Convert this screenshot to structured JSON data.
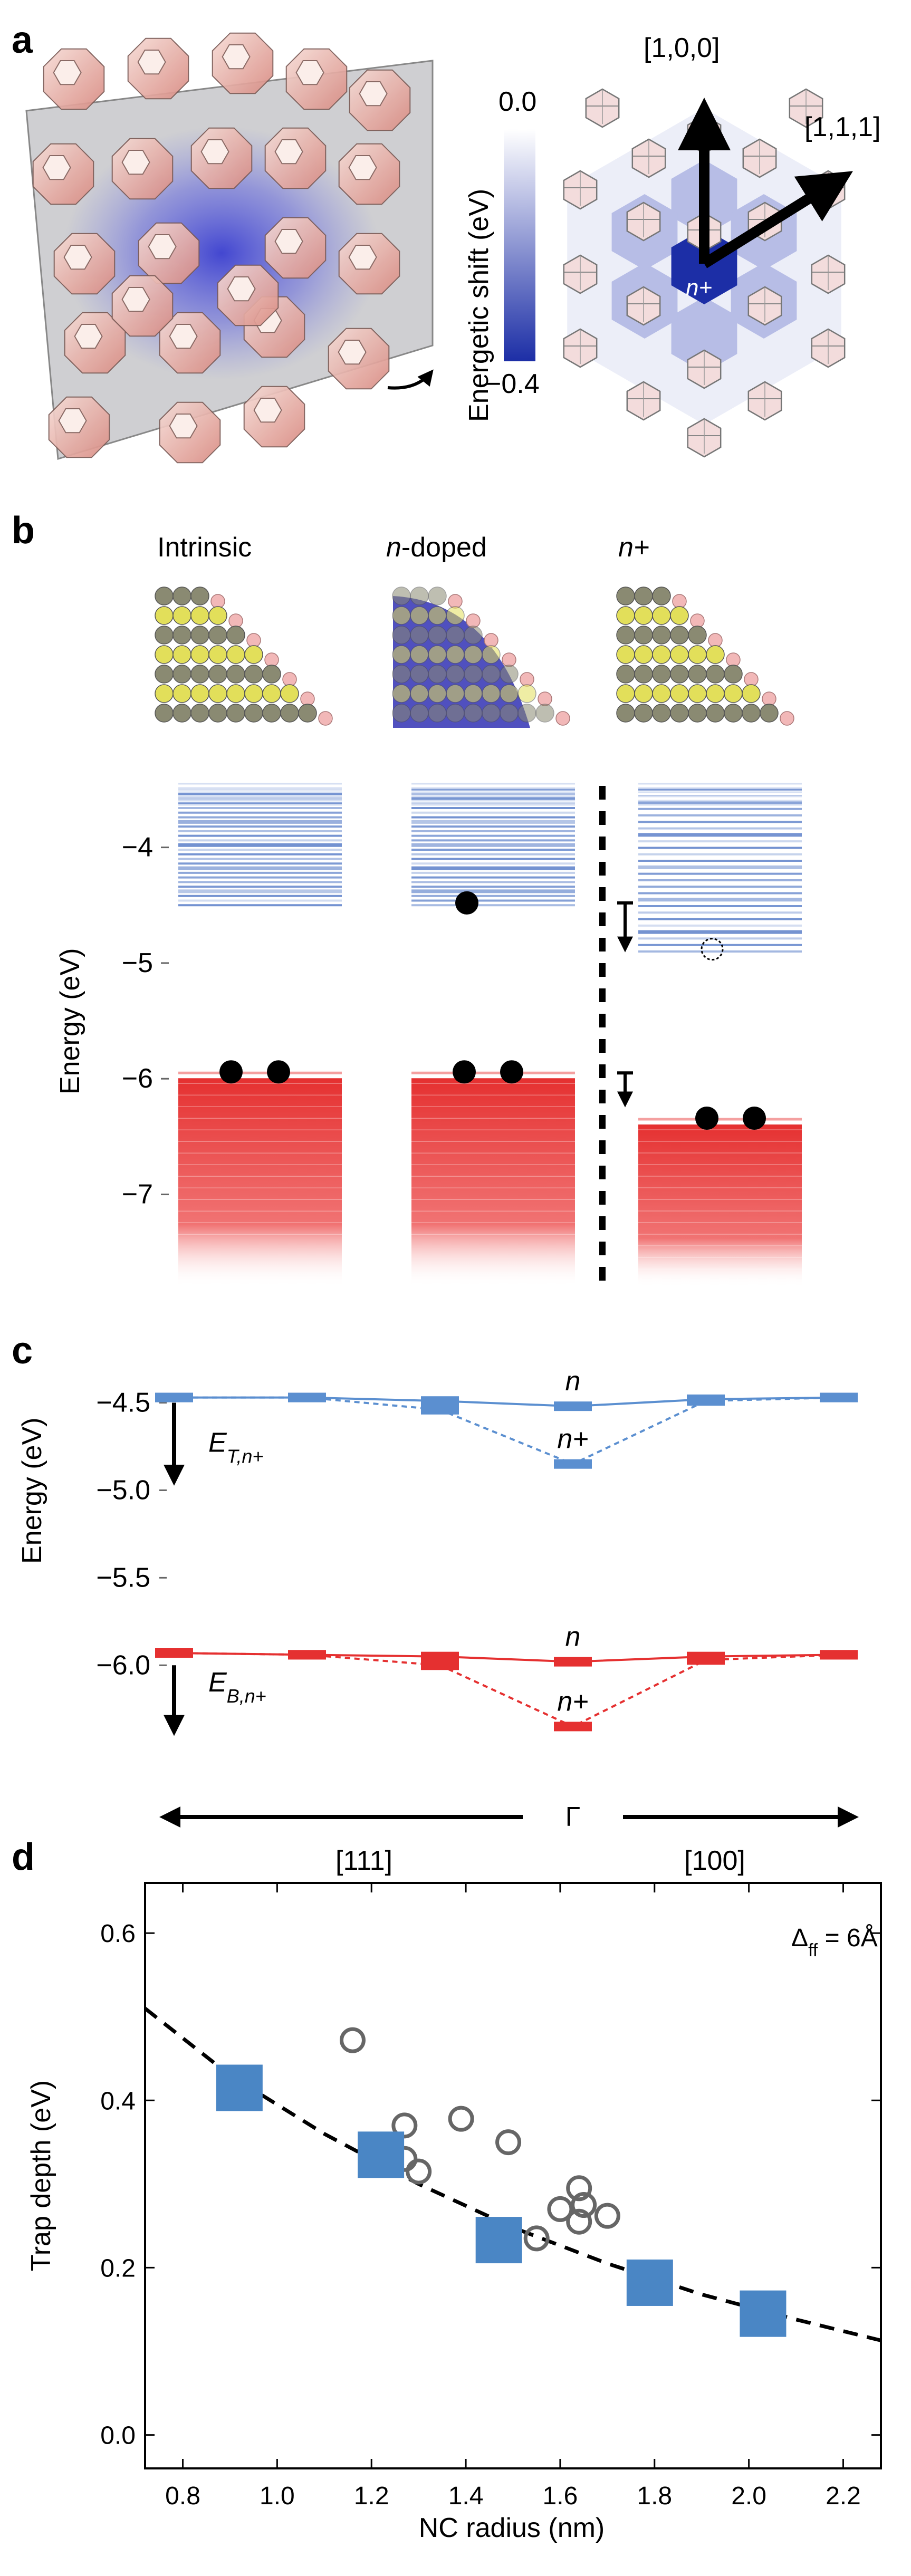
{
  "panels": {
    "a": "a",
    "b": "b",
    "c": "c",
    "d": "d"
  },
  "panel_a": {
    "colorbar_title": "Energetic shift (eV)",
    "colorbar_max": "0.0",
    "colorbar_min": "−0.4",
    "colorbar_colors": [
      "#ffffff",
      "#1c2ea6"
    ],
    "direction_100": "[1,0,0]",
    "direction_111": "[1,1,1]",
    "center_label": "n+"
  },
  "panel_b": {
    "columns": [
      "Intrinsic",
      "n-doped",
      "n+"
    ],
    "ylabel": "Energy (eV)",
    "ytick_labels": [
      "−4",
      "−5",
      "−6",
      "−7"
    ],
    "colors": {
      "conduction": "#5b7fc9",
      "valence": "#e53030"
    },
    "chart_data": {
      "type": "energy-level-diagram",
      "ylabel": "Energy (eV)",
      "ylim": [
        -7.8,
        -3.4
      ],
      "yticks": [
        -4,
        -5,
        -6,
        -7
      ],
      "columns": [
        {
          "name": "Intrinsic",
          "conduction_band_range": [
            -4.5,
            -3.5
          ],
          "valence_band_top": -5.95,
          "electrons_at": [
            -5.95,
            -5.95
          ]
        },
        {
          "name": "n-doped",
          "conduction_band_range": [
            -4.5,
            -3.5
          ],
          "valence_band_top": -5.95,
          "electrons_at": [
            -5.95,
            -5.95,
            -4.48
          ]
        },
        {
          "name": "n+",
          "conduction_band_range": [
            -4.9,
            -3.5
          ],
          "valence_band_top": -6.35,
          "electrons_at": [
            -6.35,
            -6.35
          ],
          "empty_state_at": -4.88
        }
      ]
    }
  },
  "panel_c": {
    "ylabel": "Energy (eV)",
    "ytick_labels": [
      "−4.5",
      "−5.0",
      "−5.5",
      "−6.0"
    ],
    "n_label": "n",
    "nplus_label": "n+",
    "ET_label": "E",
    "ET_sub": "T,n+",
    "EB_label": "E",
    "EB_sub": "B,n+",
    "gamma_label": "Γ",
    "dir_111": "[111]",
    "dir_100": "[100]",
    "colors": {
      "top": "#5b8fd0",
      "bottom": "#e53030"
    },
    "chart_data": {
      "type": "line",
      "ylabel": "Energy (eV)",
      "ylim": [
        -6.4,
        -4.2
      ],
      "yticks": [
        -4.5,
        -5.0,
        -5.5,
        -6.0
      ],
      "x": [
        -3,
        -2,
        -1,
        0,
        1,
        2
      ],
      "series": [
        {
          "name": "conduction n",
          "style": "solid",
          "values": [
            -4.47,
            -4.47,
            -4.49,
            -4.52,
            -4.48,
            -4.47
          ]
        },
        {
          "name": "conduction n+",
          "style": "dashed",
          "values": [
            -4.47,
            -4.47,
            -4.54,
            -4.85,
            -4.49,
            -4.47
          ]
        },
        {
          "name": "valence n",
          "style": "solid",
          "values": [
            -5.93,
            -5.94,
            -5.95,
            -5.98,
            -5.95,
            -5.94
          ]
        },
        {
          "name": "valence n+",
          "style": "dashed",
          "values": [
            -5.93,
            -5.94,
            -6.0,
            -6.35,
            -5.97,
            -5.94
          ]
        }
      ]
    }
  },
  "panel_d": {
    "annotation": "Δ",
    "annotation_sub": "ff",
    "annotation_value": " = 6Å",
    "marker_colors": {
      "squares": "#4a86c5",
      "circles": "#666666"
    },
    "chart_data": {
      "type": "scatter",
      "title": "",
      "xlabel": "NC radius (nm)",
      "ylabel": "Trap depth (eV)",
      "xlim": [
        0.72,
        2.28
      ],
      "ylim": [
        -0.04,
        0.66
      ],
      "xticks": [
        0.8,
        1.0,
        1.2,
        1.4,
        1.6,
        1.8,
        2.0,
        2.2
      ],
      "yticks": [
        0.0,
        0.2,
        0.4,
        0.6
      ],
      "xtick_labels": [
        "0.8",
        "1.0",
        "1.2",
        "1.4",
        "1.6",
        "1.8",
        "2.0",
        "2.2"
      ],
      "ytick_labels": [
        "0.0",
        "0.2",
        "0.4",
        "0.6"
      ],
      "series": [
        {
          "name": "calculated (squares)",
          "marker": "square",
          "x": [
            0.92,
            1.22,
            1.47,
            1.79,
            2.03
          ],
          "y": [
            0.415,
            0.335,
            0.233,
            0.182,
            0.145
          ]
        },
        {
          "name": "reference (circles)",
          "marker": "circle",
          "x": [
            1.16,
            1.27,
            1.27,
            1.3,
            1.39,
            1.49,
            1.55,
            1.6,
            1.64,
            1.64,
            1.65,
            1.7
          ],
          "y": [
            0.472,
            0.37,
            0.33,
            0.315,
            0.378,
            0.35,
            0.235,
            0.27,
            0.295,
            0.255,
            0.275,
            0.262
          ]
        },
        {
          "name": "fit",
          "style": "dashed",
          "x": [
            0.72,
            0.9,
            1.1,
            1.3,
            1.5,
            1.7,
            1.9,
            2.1,
            2.28
          ],
          "y": [
            0.51,
            0.43,
            0.36,
            0.3,
            0.248,
            0.205,
            0.168,
            0.138,
            0.113
          ]
        }
      ]
    }
  }
}
